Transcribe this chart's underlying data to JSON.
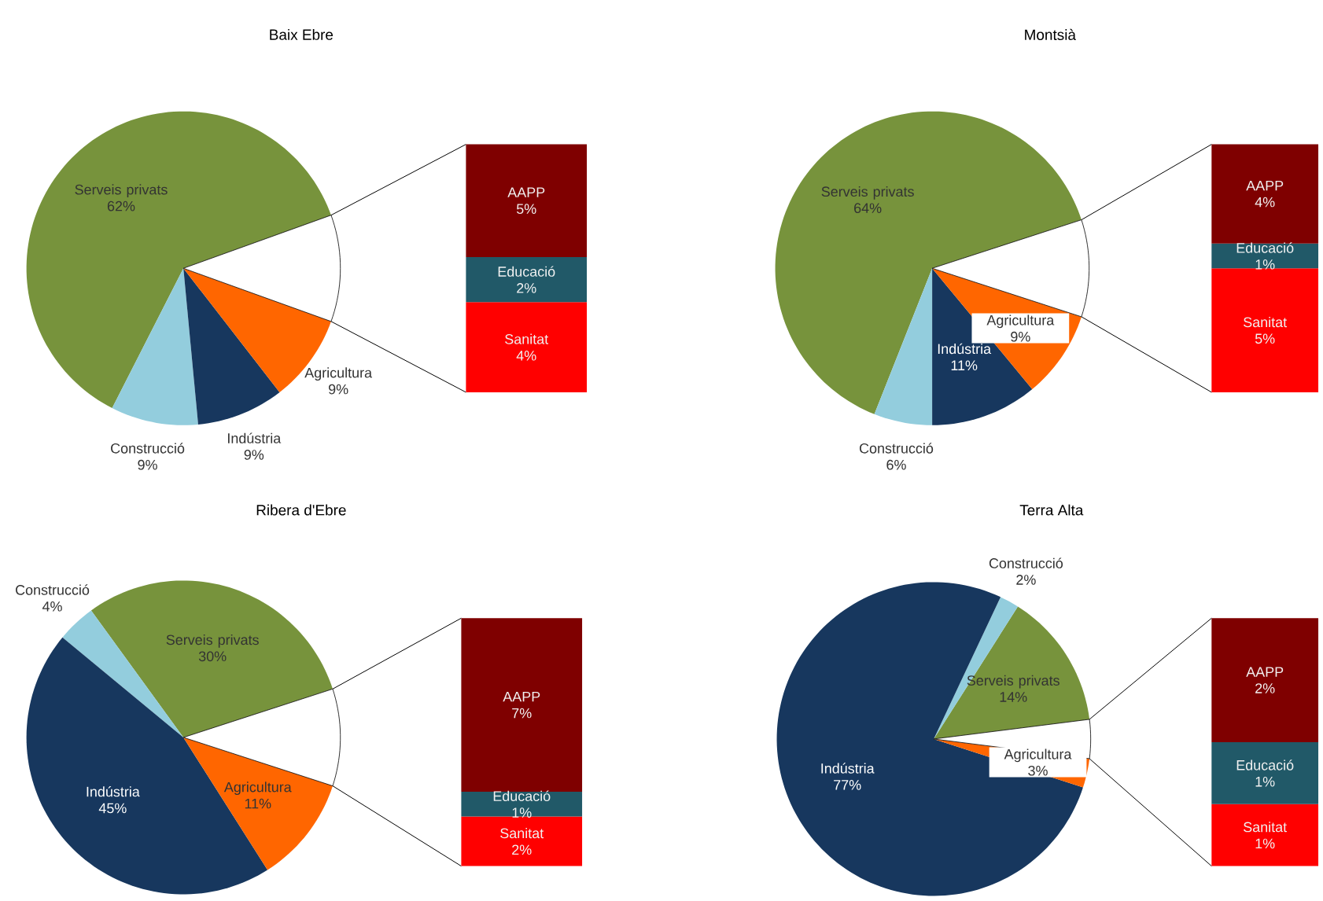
{
  "chart_data": [
    {
      "type": "pie",
      "title": "Baix Ebre",
      "categories": [
        "Serveis privats",
        "Construcció",
        "Indústria",
        "Agricultura",
        null
      ],
      "values": [
        62,
        9,
        9,
        9,
        11
      ],
      "colors": [
        "#77933c",
        "#93cddd",
        "#17375e",
        "#ff6600",
        "#ffffff"
      ],
      "value_labels": [
        "62%",
        "9%",
        "9%",
        "9%",
        null
      ]
    },
    {
      "type": "bar",
      "stacked": true,
      "categories": [
        null
      ],
      "series": [
        {
          "name": "Sanitat",
          "color": "#ff0000",
          "values": [
            4
          ],
          "value_labels": [
            "4%"
          ]
        },
        {
          "name": "Educació",
          "color": "#215968",
          "values": [
            2
          ],
          "value_labels": [
            "2%"
          ]
        },
        {
          "name": "AAPP",
          "color": "#7f0000",
          "values": [
            5
          ],
          "value_labels": [
            "5%"
          ]
        }
      ]
    },
    {
      "type": "pie",
      "title": "Montsià",
      "categories": [
        "Serveis privats",
        "Construcció",
        "Indústria",
        "Agricultura",
        null
      ],
      "values": [
        64,
        6,
        11,
        9,
        10
      ],
      "colors": [
        "#77933c",
        "#93cddd",
        "#17375e",
        "#ff6600",
        "#ffffff"
      ],
      "value_labels": [
        "64%",
        "6%",
        "11%",
        "9%",
        null
      ]
    },
    {
      "type": "bar",
      "stacked": true,
      "categories": [
        null
      ],
      "series": [
        {
          "name": "Sanitat",
          "color": "#ff0000",
          "values": [
            5
          ],
          "value_labels": [
            "5%"
          ]
        },
        {
          "name": "Educació",
          "color": "#215968",
          "values": [
            1
          ],
          "value_labels": [
            "1%"
          ]
        },
        {
          "name": "AAPP",
          "color": "#7f0000",
          "values": [
            4
          ],
          "value_labels": [
            "4%"
          ]
        }
      ]
    },
    {
      "type": "pie",
      "title": "Ribera d'Ebre",
      "categories": [
        "Serveis privats",
        "Construcció",
        "Indústria",
        "Agricultura",
        null
      ],
      "values": [
        30,
        4,
        45,
        11,
        10
      ],
      "colors": [
        "#77933c",
        "#93cddd",
        "#17375e",
        "#ff6600",
        "#ffffff"
      ],
      "value_labels": [
        "30%",
        "4%",
        "45%",
        "11%",
        null
      ]
    },
    {
      "type": "bar",
      "stacked": true,
      "categories": [
        null
      ],
      "series": [
        {
          "name": "Sanitat",
          "color": "#ff0000",
          "values": [
            2
          ],
          "value_labels": [
            "2%"
          ]
        },
        {
          "name": "Educació",
          "color": "#215968",
          "values": [
            1
          ],
          "value_labels": [
            "1%"
          ]
        },
        {
          "name": "AAPP",
          "color": "#7f0000",
          "values": [
            7
          ],
          "value_labels": [
            "7%"
          ]
        }
      ]
    },
    {
      "type": "pie",
      "title": "Terra Alta",
      "categories": [
        "Serveis privats",
        "Construcció",
        "Indústria",
        "Agricultura",
        null
      ],
      "values": [
        14,
        2,
        77,
        3,
        4
      ],
      "colors": [
        "#77933c",
        "#93cddd",
        "#17375e",
        "#ff6600",
        "#ffffff"
      ],
      "value_labels": [
        "14%",
        "2%",
        "77%",
        "3%",
        null
      ]
    },
    {
      "type": "bar",
      "stacked": true,
      "categories": [
        null
      ],
      "series": [
        {
          "name": "Sanitat",
          "color": "#ff0000",
          "values": [
            1
          ],
          "value_labels": [
            "1%"
          ]
        },
        {
          "name": "Educació",
          "color": "#215968",
          "values": [
            1
          ],
          "value_labels": [
            "1%"
          ]
        },
        {
          "name": "AAPP",
          "color": "#7f0000",
          "values": [
            2
          ],
          "value_labels": [
            "2%"
          ]
        }
      ]
    }
  ]
}
